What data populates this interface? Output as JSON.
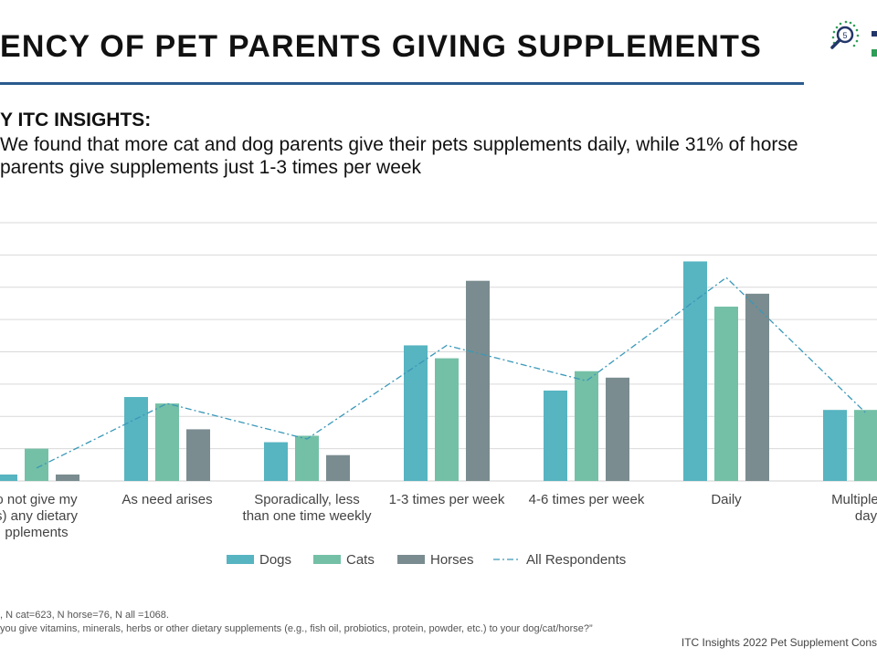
{
  "header": {
    "title": "ENCY OF PET PARENTS GIVING SUPPLEMENTS",
    "logo_icon": "magnifier-dots-icon",
    "logo_text": "5"
  },
  "insights": {
    "heading": "Y ITC INSIGHTS:",
    "lines": [
      "We found that more cat and dog parents give their pets supplements daily, while 31% of horse",
      "parents give supplements just 1-3 times per week"
    ]
  },
  "chart_data": {
    "type": "bar",
    "categories": [
      [
        "o not give my",
        "s) any dietary",
        "pplements"
      ],
      [
        "As need arises"
      ],
      [
        "Sporadically, less",
        "than one time weekly"
      ],
      [
        "1-3 times per week"
      ],
      [
        "4-6 times per week"
      ],
      [
        "Daily"
      ],
      [
        "Multiple tim",
        "day"
      ]
    ],
    "series": [
      {
        "name": "Dogs",
        "color": "#57b4c1",
        "values": [
          1,
          13,
          6,
          21,
          14,
          34,
          11
        ]
      },
      {
        "name": "Cats",
        "color": "#74c0a6",
        "values": [
          5,
          12,
          7,
          19,
          17,
          27,
          11
        ]
      },
      {
        "name": "Horses",
        "color": "#7a8c8f",
        "values": [
          1,
          8,
          4,
          31,
          16,
          29,
          null
        ]
      }
    ],
    "line_series": {
      "name": "All Respondents",
      "color": "#3a98b8",
      "values": [
        2,
        12,
        6.5,
        21,
        15.5,
        31.5,
        10.5
      ]
    },
    "ylim": [
      0,
      40
    ],
    "grid": true,
    "legend": "bottom"
  },
  "footnotes": {
    "sample": ", N cat=623,  N horse=76, N all =1068.",
    "question": "you give vitamins, minerals, herbs or other dietary supplements (e.g., fish oil, probiotics, protein, powder, etc.) to your dog/cat/horse?”"
  },
  "source": "ITC Insights 2022 Pet Supplement Cons"
}
